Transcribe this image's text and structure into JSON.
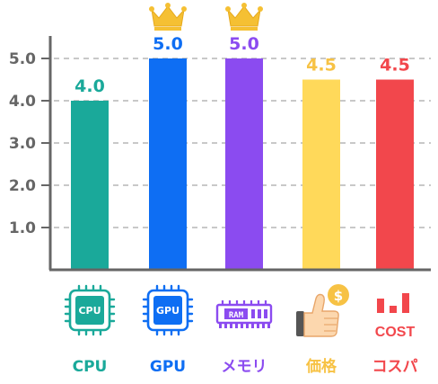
{
  "chart_data": {
    "type": "bar",
    "categories": [
      "CPU",
      "GPU",
      "メモリ",
      "価格",
      "コスパ"
    ],
    "values": [
      4.0,
      5.0,
      5.0,
      4.5,
      4.5
    ],
    "value_labels": [
      "4.0",
      "5.0",
      "5.0",
      "4.5",
      "4.5"
    ],
    "colors": [
      "#1aa99a",
      "#0e6ef3",
      "#8b4bf0",
      "#ffd95a",
      "#f2474c"
    ],
    "label_colors": [
      "#1aa99a",
      "#0e6ef3",
      "#8b4bf0",
      "#f7c244",
      "#f2474c"
    ],
    "top_marker": "crown-icon",
    "yticks": [
      "1.0",
      "2.0",
      "3.0",
      "4.0",
      "5.0"
    ],
    "ylim": [
      0,
      5.2
    ],
    "grid": true,
    "icons": [
      "cpu-chip-icon",
      "gpu-chip-icon",
      "ram-module-icon",
      "thumbs-up-coin-icon",
      "cost-chart-icon"
    ],
    "icon_text": {
      "cpu": "CPU",
      "gpu": "GPU",
      "ram": "RAM",
      "dollar": "$",
      "cost": "COST"
    }
  }
}
